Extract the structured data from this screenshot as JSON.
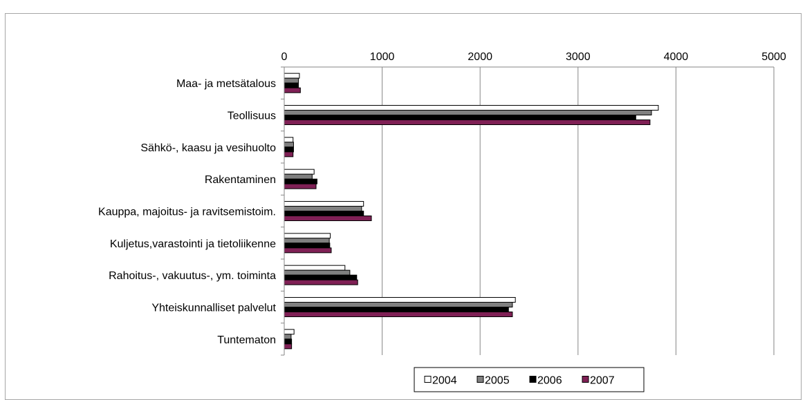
{
  "chart_data": {
    "type": "bar",
    "orientation": "horizontal",
    "title": "",
    "xlabel": "",
    "ylabel": "",
    "xlim": [
      0,
      5000
    ],
    "x_ticks": [
      "0",
      "1000",
      "2000",
      "3000",
      "4000",
      "5000"
    ],
    "x_axis_position": "top",
    "grid": "vertical major gridlines",
    "legend_position": "bottom",
    "categories": [
      "Maa- ja metsätalous",
      "Teollisuus",
      "Sähkö-, kaasu ja vesihuolto",
      "Rakentaminen",
      "Kauppa, majoitus- ja ravitsemistoim.",
      "Kuljetus,varastointi ja tietoliikenne",
      "Rahoitus-, vakuutus-, ym. toiminta",
      "Yhteiskunnalliset palvelut",
      "Tuntematon"
    ],
    "series": [
      {
        "name": "2004",
        "color": "#ffffff",
        "values": [
          155,
          3820,
          90,
          305,
          810,
          470,
          620,
          2360,
          100
        ]
      },
      {
        "name": "2005",
        "color": "#808080",
        "values": [
          145,
          3750,
          95,
          285,
          790,
          460,
          670,
          2330,
          70
        ]
      },
      {
        "name": "2006",
        "color": "#000000",
        "values": [
          145,
          3590,
          95,
          335,
          810,
          465,
          740,
          2290,
          75
        ]
      },
      {
        "name": "2007",
        "color": "#7f2055",
        "values": [
          165,
          3735,
          90,
          325,
          890,
          480,
          750,
          2330,
          75
        ]
      }
    ]
  }
}
